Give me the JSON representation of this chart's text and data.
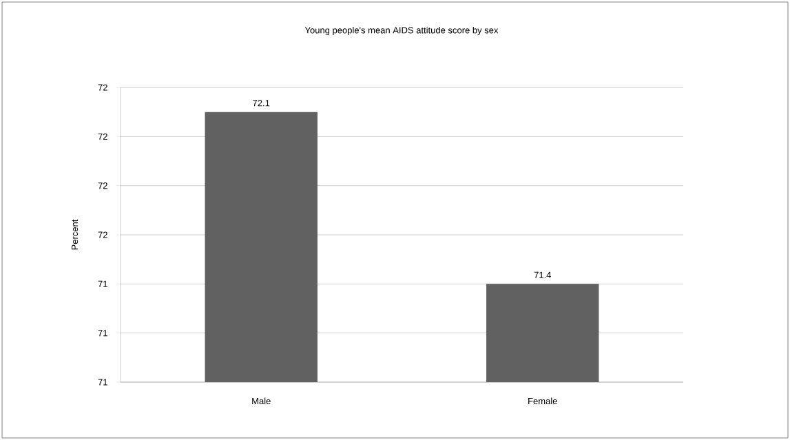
{
  "chart_data": {
    "type": "bar",
    "title": "Young people's mean AIDS attitude score by sex",
    "ylabel": "Percent",
    "categories": [
      "Male",
      "Female"
    ],
    "values": [
      72.1,
      71.4
    ],
    "color": "#616161",
    "ylim": [
      71.0,
      72.2
    ],
    "yticks": [
      {
        "value": 71.0,
        "label": "71"
      },
      {
        "value": 71.2,
        "label": "71"
      },
      {
        "value": 71.4,
        "label": "71"
      },
      {
        "value": 71.6,
        "label": "72"
      },
      {
        "value": 71.8,
        "label": "72"
      },
      {
        "value": 72.0,
        "label": "72"
      },
      {
        "value": 72.2,
        "label": "72"
      }
    ],
    "grid": "y",
    "data_labels": true
  }
}
